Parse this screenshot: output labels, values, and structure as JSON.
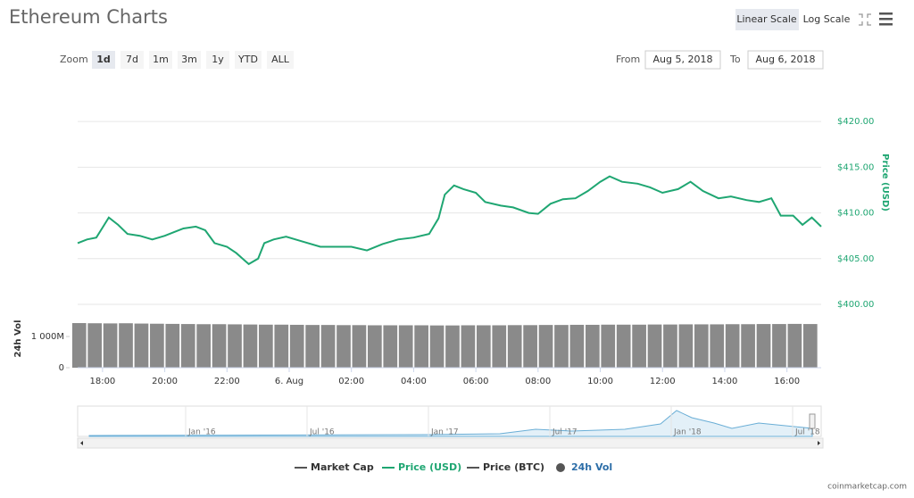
{
  "ui": {
    "title": "Ethereum Charts",
    "linear_scale": "Linear Scale",
    "log_scale": "Log Scale",
    "zoom_label": "Zoom",
    "zoom_buttons": [
      "1d",
      "7d",
      "1m",
      "3m",
      "1y",
      "YTD",
      "ALL"
    ],
    "from_label": "From",
    "from_date": "Aug 5, 2018",
    "to_label": "To",
    "to_date": "Aug 6, 2018",
    "legend_other": [
      {
        "name": "Market Cap",
        "color": "#555555"
      },
      {
        "name": "Price (BTC)",
        "color": "#555555"
      }
    ],
    "navigator_labels": [
      "Jan '16",
      "Jul '16",
      "Jan '17",
      "Jul '17",
      "Jan '18",
      "Jul '18"
    ],
    "credit": "coinmarketcap.com"
  },
  "chart_data": [
    {
      "type": "line",
      "y_label": "Price (USD)",
      "grid": true,
      "x": [
        17.2,
        17.5,
        17.8,
        18.0,
        18.2,
        18.5,
        18.8,
        19.2,
        19.6,
        20.0,
        20.3,
        20.6,
        21.0,
        21.3,
        21.6,
        22.0,
        22.3,
        22.5,
        22.7,
        23.0,
        23.2,
        23.5,
        23.9,
        24.4,
        25.0,
        26.0,
        26.5,
        27.0,
        27.5,
        28.0,
        28.5,
        28.8,
        29.0,
        29.3,
        29.6,
        30.0,
        30.3,
        30.8,
        31.2,
        31.7,
        32.0,
        32.4,
        32.8,
        33.2,
        33.6,
        34.0,
        34.3,
        34.7,
        35.2,
        35.6,
        36.0,
        36.5,
        36.9,
        37.3,
        37.8,
        38.2,
        38.7,
        39.1,
        39.5,
        39.8,
        40.2,
        40.5,
        40.8,
        41.1
      ],
      "series": [
        {
          "name": "Price (USD)",
          "color": "#1fa672",
          "values": [
            406.7,
            407.1,
            407.3,
            408.4,
            409.5,
            408.7,
            407.7,
            407.5,
            407.1,
            407.5,
            407.9,
            408.3,
            408.5,
            408.1,
            406.7,
            406.3,
            405.6,
            405.0,
            404.4,
            405.0,
            406.7,
            407.1,
            407.4,
            406.9,
            406.3,
            406.3,
            405.9,
            406.6,
            407.1,
            407.3,
            407.7,
            409.4,
            412.0,
            413.0,
            412.6,
            412.2,
            411.2,
            410.8,
            410.6,
            410.0,
            409.9,
            411.0,
            411.5,
            411.6,
            412.4,
            413.4,
            414.0,
            413.4,
            413.2,
            412.8,
            412.2,
            412.6,
            413.4,
            412.4,
            411.6,
            411.8,
            411.4,
            411.2,
            411.6,
            409.7,
            409.7,
            408.7,
            409.5,
            408.5
          ]
        }
      ],
      "xlim": [
        17.2,
        41.1
      ],
      "ylim": [
        400,
        424.7
      ],
      "yticks": [
        {
          "value": 400,
          "label": "$400.00"
        },
        {
          "value": 405,
          "label": "$405.00"
        },
        {
          "value": 410,
          "label": "$410.00"
        },
        {
          "value": 415,
          "label": "$415.00"
        },
        {
          "value": 420,
          "label": "$420.00"
        }
      ]
    },
    {
      "type": "bar",
      "y_label": "24h Vol",
      "x": [
        17.25,
        17.75,
        18.25,
        18.75,
        19.25,
        19.75,
        20.25,
        20.75,
        21.25,
        21.75,
        22.25,
        22.75,
        23.25,
        23.75,
        24.25,
        24.75,
        25.25,
        25.75,
        26.25,
        26.75,
        27.25,
        27.75,
        28.25,
        28.75,
        29.25,
        29.75,
        30.25,
        30.75,
        31.25,
        31.75,
        32.25,
        32.75,
        33.25,
        33.75,
        34.25,
        34.75,
        35.25,
        35.75,
        36.25,
        36.75,
        37.25,
        37.75,
        38.25,
        38.75,
        39.25,
        39.75,
        40.25,
        40.75
      ],
      "series": [
        {
          "name": "24h Vol",
          "color": "#8a8a8a",
          "values": [
            1430,
            1425,
            1420,
            1425,
            1415,
            1410,
            1405,
            1400,
            1395,
            1395,
            1390,
            1385,
            1380,
            1380,
            1375,
            1370,
            1370,
            1365,
            1365,
            1360,
            1360,
            1360,
            1360,
            1355,
            1355,
            1360,
            1360,
            1360,
            1365,
            1365,
            1370,
            1370,
            1375,
            1375,
            1380,
            1380,
            1380,
            1385,
            1385,
            1390,
            1390,
            1390,
            1395,
            1395,
            1400,
            1400,
            1405,
            1400
          ]
        }
      ],
      "xlim": [
        17.2,
        41.1
      ],
      "ylim": [
        0,
        1860
      ],
      "yticks": [
        0,
        {
          "value": 1000,
          "label": "1 000M"
        }
      ],
      "xticks": [
        {
          "value": 18,
          "label": "18:00"
        },
        {
          "value": 20,
          "label": "20:00"
        },
        {
          "value": 22,
          "label": "22:00"
        },
        {
          "value": 24,
          "label": "6. Aug"
        },
        {
          "value": 26,
          "label": "02:00"
        },
        {
          "value": 28,
          "label": "04:00"
        },
        {
          "value": 30,
          "label": "06:00"
        },
        {
          "value": 32,
          "label": "08:00"
        },
        {
          "value": 34,
          "label": "10:00"
        },
        {
          "value": 36,
          "label": "12:00"
        },
        {
          "value": 38,
          "label": "14:00"
        },
        {
          "value": 40,
          "label": "16:00"
        }
      ]
    }
  ]
}
